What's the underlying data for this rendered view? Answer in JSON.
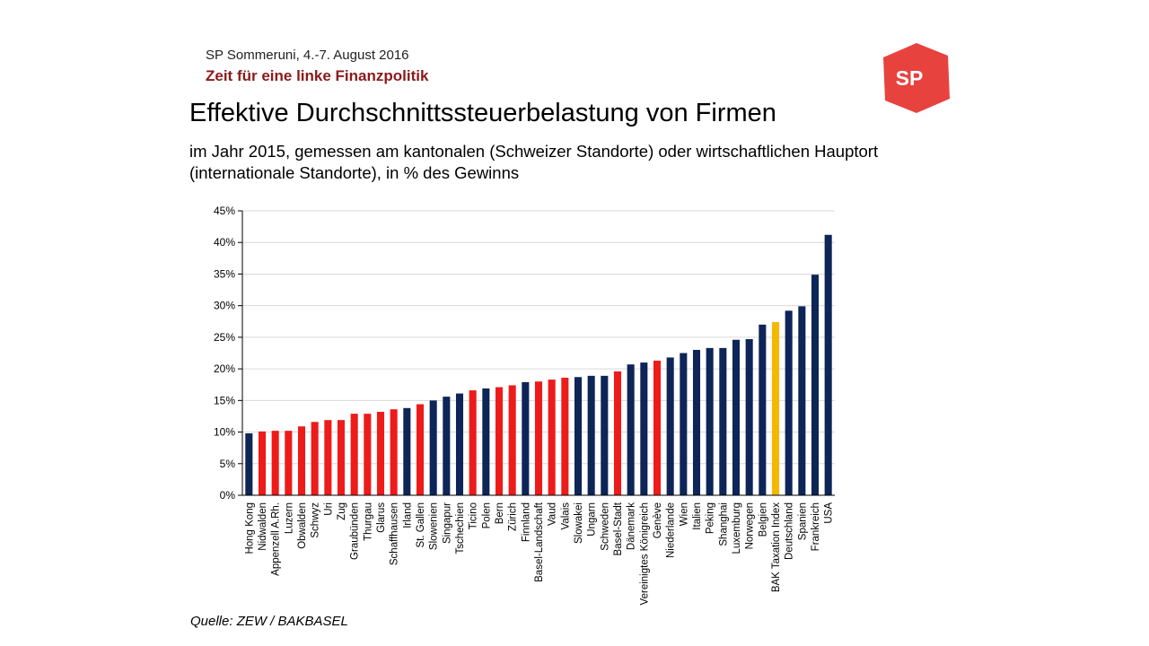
{
  "header": {
    "event": "SP Sommeruni,  4.-7. August 2016",
    "topic": "Zeit für eine linke Finanzpolitik",
    "logo_text": "SP"
  },
  "slide": {
    "title": "Effektive Durchschnittssteuerbelastung von Firmen",
    "subtitle": "im Jahr 2015, gemessen am kantonalen (Schweizer Standorte) oder wirtschaftlichen Hauptort (internationale Standorte), in % des Gewinns",
    "source": "Quelle: ZEW / BAKBASEL"
  },
  "colors": {
    "international": "#0d2557",
    "swiss": "#ee1b1b",
    "index": "#f5b800",
    "logo": "#e8423f"
  },
  "chart_data": {
    "type": "bar",
    "title": "",
    "xlabel": "",
    "ylabel": "",
    "ylim": [
      0,
      45
    ],
    "yticks": [
      "0%",
      "5%",
      "10%",
      "15%",
      "20%",
      "25%",
      "30%",
      "35%",
      "40%",
      "45%"
    ],
    "grid": true,
    "categories": [
      "Hong Kong",
      "Nidwalden",
      "Appenzell A.Rh.",
      "Luzern",
      "Obwalden",
      "Schwyz",
      "Uri",
      "Zug",
      "Graubünden",
      "Thurgau",
      "Glarus",
      "Schaffhausen",
      "Irland",
      "St. Gallen",
      "Slowenien",
      "Singapur",
      "Tschechien",
      "Ticino",
      "Polen",
      "Bern",
      "Zürich",
      "Finnland",
      "Basel-Landschaft",
      "Vaud",
      "Valais",
      "Slowakei",
      "Ungarn",
      "Schweden",
      "Basel-Stadt",
      "Dänemark",
      "Vereinigtes Königreich",
      "Genève",
      "Niederlande",
      "Wien",
      "Italien",
      "Peking",
      "Shanghai",
      "Luxemburg",
      "Norwegen",
      "Belgien",
      "BAK Taxation Index",
      "Deutschland",
      "Spanien",
      "Frankreich",
      "USA"
    ],
    "values": [
      9.8,
      10.1,
      10.2,
      10.2,
      10.9,
      11.6,
      11.9,
      11.9,
      12.9,
      12.9,
      13.2,
      13.6,
      13.8,
      14.4,
      15.0,
      15.6,
      16.1,
      16.6,
      16.9,
      17.1,
      17.4,
      17.9,
      18.0,
      18.3,
      18.6,
      18.7,
      18.9,
      18.9,
      19.6,
      20.7,
      21.0,
      21.3,
      21.8,
      22.5,
      23.0,
      23.3,
      23.3,
      24.6,
      24.7,
      27.0,
      27.4,
      29.2,
      29.9,
      34.9,
      41.2
    ],
    "groups": [
      "international",
      "swiss",
      "swiss",
      "swiss",
      "swiss",
      "swiss",
      "swiss",
      "swiss",
      "swiss",
      "swiss",
      "swiss",
      "swiss",
      "international",
      "swiss",
      "international",
      "international",
      "international",
      "swiss",
      "international",
      "swiss",
      "swiss",
      "international",
      "swiss",
      "swiss",
      "swiss",
      "international",
      "international",
      "international",
      "swiss",
      "international",
      "international",
      "swiss",
      "international",
      "international",
      "international",
      "international",
      "international",
      "international",
      "international",
      "international",
      "index",
      "international",
      "international",
      "international",
      "international"
    ]
  }
}
